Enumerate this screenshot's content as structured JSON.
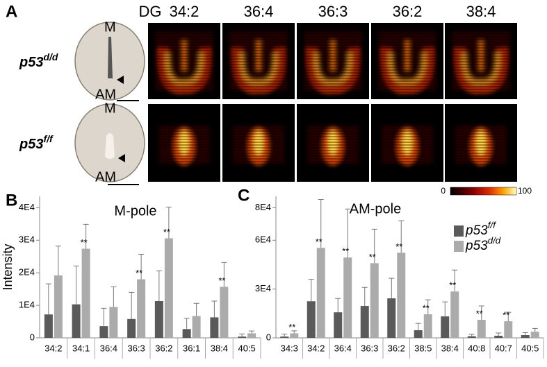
{
  "panel_a": {
    "label": "A",
    "header": "DG",
    "lipids": [
      "34:2",
      "36:4",
      "36:3",
      "36:2",
      "38:4"
    ],
    "rows": [
      {
        "gene": "p53",
        "genotype": "d/d",
        "top": "M",
        "bottom": "AM"
      },
      {
        "gene": "p53",
        "genotype": "f/f",
        "top": "M",
        "bottom": "AM"
      }
    ],
    "colorbar": [
      "0",
      "100"
    ]
  },
  "chart_data": [
    {
      "type": "bar",
      "panel": "B",
      "title": "M-pole",
      "y_label": "Intensity",
      "categories": [
        "34:2",
        "34:1",
        "36:4",
        "36:3",
        "36:2",
        "36:1",
        "38:4",
        "40:5"
      ],
      "series": [
        {
          "name": "p53",
          "superscript": "f/f",
          "color": "#5a5a5a",
          "values": [
            7200,
            10300,
            3600,
            5800,
            11300,
            2700,
            6300,
            400
          ],
          "errors": [
            9400,
            11800,
            5500,
            8200,
            9300,
            3300,
            5000,
            800
          ]
        },
        {
          "name": "p53",
          "superscript": "d/d",
          "color": "#ababab",
          "values": [
            19200,
            27400,
            9500,
            18000,
            30600,
            6700,
            15700,
            1400
          ],
          "errors": [
            9000,
            7500,
            6200,
            7700,
            9600,
            3900,
            7500,
            700
          ]
        }
      ],
      "significance": [
        null,
        "**",
        null,
        "**",
        "**",
        null,
        "**",
        null
      ],
      "ylim": [
        0,
        43500
      ],
      "yticks": [
        0,
        {
          "value": 10000,
          "label": "1E4"
        },
        {
          "value": 20000,
          "label": "2E4"
        },
        {
          "value": 30000,
          "label": "3E4"
        },
        {
          "value": 40000,
          "label": "4E4"
        }
      ]
    },
    {
      "type": "bar",
      "panel": "C",
      "title": "AM-pole",
      "legend": true,
      "categories": [
        "34:3",
        "34:2",
        "36:4",
        "36:3",
        "36:2",
        "38:5",
        "38:4",
        "40:8",
        "40:7",
        "40:5"
      ],
      "series": [
        {
          "name": "p53",
          "superscript": "f/f",
          "color": "#5a5a5a",
          "values": [
            800,
            22500,
            15700,
            19600,
            24300,
            4700,
            13200,
            1000,
            1300,
            1700
          ],
          "errors": [
            1500,
            13500,
            8500,
            11400,
            12300,
            4200,
            8900,
            1200,
            1700,
            1500
          ]
        },
        {
          "name": "p53",
          "superscript": "d/d",
          "color": "#ababab",
          "values": [
            2800,
            55300,
            49400,
            45900,
            52300,
            14500,
            28500,
            11100,
            10200,
            3800
          ],
          "errors": [
            1500,
            29800,
            29800,
            20900,
            19700,
            8900,
            13200,
            8500,
            5500,
            2000
          ]
        }
      ],
      "significance": [
        "**",
        "**",
        "**",
        "**",
        "**",
        "**",
        "**",
        "**",
        "**",
        null
      ],
      "ylim": [
        0,
        87000
      ],
      "yticks": [
        0,
        {
          "value": 30000,
          "label": "3E4"
        },
        {
          "value": 60000,
          "label": "6E4"
        },
        {
          "value": 80000,
          "label": "8E4"
        }
      ]
    }
  ]
}
